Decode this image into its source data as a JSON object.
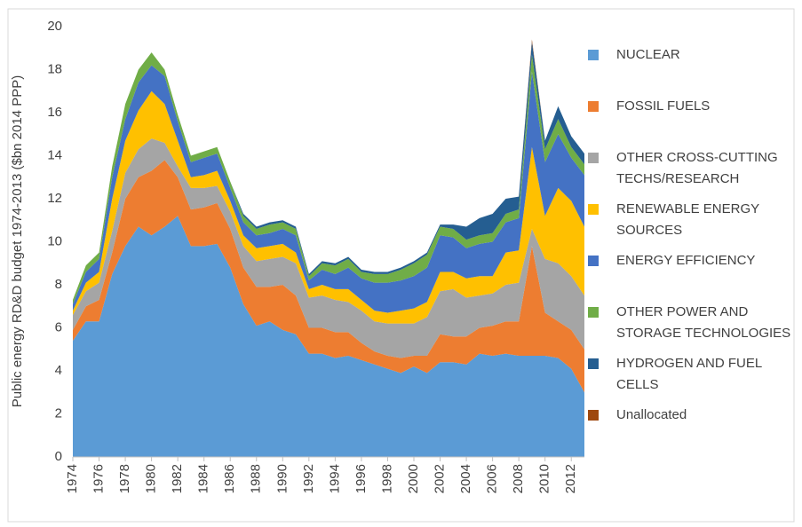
{
  "chart_data": {
    "type": "stacked_area",
    "y_label": "Public energy RD&D budget 1974-2013 ($bn 2014 PPP)",
    "x": [
      1974,
      1975,
      1976,
      1977,
      1978,
      1979,
      1980,
      1981,
      1982,
      1983,
      1984,
      1985,
      1986,
      1987,
      1988,
      1989,
      1990,
      1991,
      1992,
      1993,
      1994,
      1995,
      1996,
      1997,
      1998,
      1999,
      2000,
      2001,
      2002,
      2003,
      2004,
      2005,
      2006,
      2007,
      2008,
      2009,
      2010,
      2011,
      2012,
      2013
    ],
    "xlim": [
      1974,
      2013
    ],
    "xticks": [
      1974,
      1976,
      1978,
      1980,
      1982,
      1984,
      1986,
      1988,
      1990,
      1992,
      1994,
      1996,
      1998,
      2000,
      2002,
      2004,
      2006,
      2008,
      2010,
      2012
    ],
    "ylim": [
      0,
      20
    ],
    "yticks": [
      0,
      2,
      4,
      6,
      8,
      10,
      12,
      14,
      16,
      18,
      20
    ],
    "grid": false,
    "legend": "right",
    "series": [
      {
        "name": "NUCLEAR",
        "color": "#5b9bd5",
        "values": [
          5.4,
          6.3,
          6.3,
          8.5,
          9.8,
          10.7,
          10.3,
          10.7,
          11.2,
          9.8,
          9.8,
          9.9,
          8.8,
          7.1,
          6.1,
          6.3,
          5.9,
          5.7,
          4.8,
          4.8,
          4.6,
          4.7,
          4.5,
          4.3,
          4.1,
          3.9,
          4.2,
          3.9,
          4.4,
          4.4,
          4.3,
          4.8,
          4.7,
          4.8,
          4.7,
          4.7,
          4.7,
          4.6,
          4.1,
          3.0
        ]
      },
      {
        "name": "FOSSIL FUELS",
        "color": "#ed7d31",
        "values": [
          0.5,
          0.7,
          1.0,
          1.0,
          2.2,
          2.3,
          3.0,
          3.1,
          1.8,
          1.7,
          1.8,
          1.9,
          1.8,
          1.7,
          1.8,
          1.6,
          2.1,
          1.8,
          1.2,
          1.2,
          1.2,
          1.1,
          0.8,
          0.6,
          0.6,
          0.7,
          0.5,
          0.8,
          1.3,
          1.2,
          1.3,
          1.2,
          1.4,
          1.5,
          1.6,
          5.1,
          2.0,
          1.7,
          1.8,
          2.0
        ]
      },
      {
        "name": "OTHER CROSS-CUTTING TECHS/RESEARCH",
        "color": "#a5a5a5",
        "values": [
          0.7,
          0.7,
          0.8,
          1.0,
          1.2,
          1.3,
          1.5,
          0.8,
          0.5,
          1.0,
          0.9,
          0.8,
          0.8,
          1.0,
          1.2,
          1.3,
          1.3,
          1.5,
          1.4,
          1.5,
          1.5,
          1.4,
          1.5,
          1.4,
          1.5,
          1.6,
          1.5,
          1.8,
          2.0,
          2.2,
          1.8,
          1.5,
          1.5,
          1.7,
          1.8,
          0.8,
          2.5,
          2.7,
          2.5,
          2.5
        ]
      },
      {
        "name": "RENEWABLE ENERGY SOURCES",
        "color": "#ffc000",
        "values": [
          0.2,
          0.4,
          0.5,
          1.5,
          1.5,
          1.8,
          2.2,
          1.8,
          1.2,
          0.5,
          0.6,
          0.7,
          0.5,
          0.5,
          0.6,
          0.6,
          0.6,
          0.5,
          0.4,
          0.5,
          0.5,
          0.6,
          0.5,
          0.5,
          0.5,
          0.6,
          0.7,
          0.7,
          0.9,
          0.8,
          0.9,
          0.9,
          0.8,
          1.5,
          1.5,
          3.8,
          2.0,
          3.5,
          3.5,
          3.2
        ]
      },
      {
        "name": "ENERGY EFFICIENCY",
        "color": "#4472c4",
        "values": [
          0.3,
          0.5,
          0.6,
          1.0,
          1.0,
          1.3,
          1.2,
          1.3,
          0.9,
          0.7,
          0.8,
          0.8,
          0.6,
          0.6,
          0.6,
          0.6,
          0.7,
          0.8,
          0.4,
          0.7,
          0.7,
          1.0,
          1.0,
          1.3,
          1.4,
          1.4,
          1.5,
          1.6,
          1.7,
          1.6,
          1.4,
          1.5,
          1.6,
          1.4,
          1.5,
          3.5,
          2.5,
          2.5,
          2.0,
          2.4
        ]
      },
      {
        "name": "OTHER POWER AND STORAGE TECHNOLOGIES",
        "color": "#70ad47",
        "values": [
          0.2,
          0.3,
          0.3,
          0.5,
          0.7,
          0.6,
          0.6,
          0.3,
          0.3,
          0.3,
          0.3,
          0.3,
          0.3,
          0.3,
          0.3,
          0.4,
          0.3,
          0.3,
          0.2,
          0.3,
          0.4,
          0.4,
          0.3,
          0.4,
          0.4,
          0.5,
          0.6,
          0.6,
          0.4,
          0.4,
          0.4,
          0.4,
          0.4,
          0.4,
          0.4,
          0.8,
          0.6,
          0.7,
          0.5,
          0.5
        ]
      },
      {
        "name": "HYDROGEN AND FUEL CELLS",
        "color": "#255e91",
        "values": [
          0,
          0,
          0,
          0,
          0,
          0,
          0,
          0,
          0,
          0,
          0,
          0,
          0,
          0.1,
          0.1,
          0.1,
          0.1,
          0.1,
          0.1,
          0.1,
          0.1,
          0.1,
          0.1,
          0.1,
          0.1,
          0.1,
          0.1,
          0.1,
          0.1,
          0.2,
          0.6,
          0.8,
          0.9,
          0.7,
          0.6,
          0.6,
          0.4,
          0.6,
          0.5,
          0.5
        ]
      },
      {
        "name": "Unallocated",
        "color": "#9e480e",
        "values": [
          0,
          0,
          0,
          0,
          0,
          0,
          0,
          0,
          0,
          0,
          0,
          0,
          0,
          0,
          0,
          0,
          0,
          0,
          0,
          0,
          0,
          0,
          0,
          0,
          0,
          0,
          0,
          0,
          0,
          0,
          0,
          0,
          0,
          0,
          0,
          0.1,
          0,
          0,
          0,
          0
        ]
      }
    ]
  }
}
